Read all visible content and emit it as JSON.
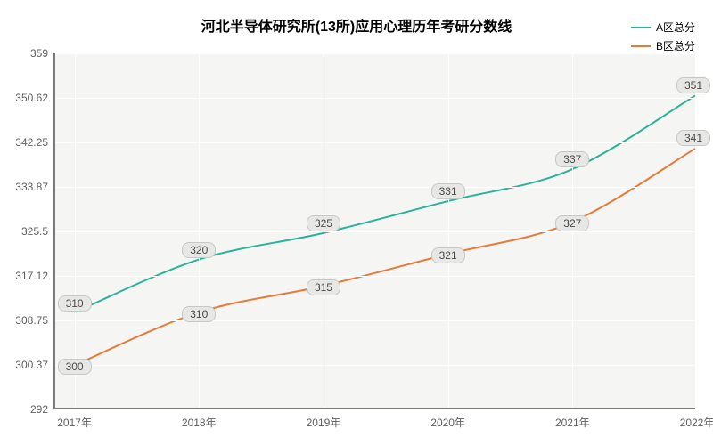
{
  "chart": {
    "type": "line",
    "title": "河北半导体研究所(13所)应用心理历年考研分数线",
    "title_fontsize": 16,
    "title_weight": "bold",
    "background_color": "#ffffff",
    "plot_background_color": "#f5f5f3",
    "grid_color": "#ffffff",
    "axis_color": "#7a7a78",
    "label_color": "#5f5f5d",
    "label_fontsize": 12,
    "ylim": [
      292,
      359
    ],
    "yticks": [
      292,
      300.37,
      308.75,
      317.12,
      325.5,
      333.87,
      342.25,
      350.62,
      359
    ],
    "xcategories": [
      "2017年",
      "2018年",
      "2019年",
      "2020年",
      "2021年",
      "2022年"
    ],
    "x_positions_pct": [
      3,
      22.4,
      41.8,
      61.2,
      80.6,
      100
    ],
    "series": [
      {
        "name": "A区总分",
        "color": "#2bb39a",
        "line_width": 2,
        "values": [
          310,
          320,
          325,
          331,
          337,
          351
        ],
        "label_offsets_y": [
          0,
          0,
          0,
          0,
          0,
          0
        ]
      },
      {
        "name": "B区总分",
        "color": "#e67b3c",
        "line_width": 2,
        "values": [
          300,
          310,
          315,
          321,
          327,
          341
        ],
        "label_offsets_y": [
          2,
          2,
          2,
          2,
          2,
          0
        ]
      }
    ],
    "legend": {
      "position": "top-right",
      "fontsize": 12
    },
    "data_label_style": {
      "background": "#e7e7e5",
      "border": "#c8c8c6",
      "text_color": "#4a4a4a",
      "fontsize": 12
    }
  }
}
